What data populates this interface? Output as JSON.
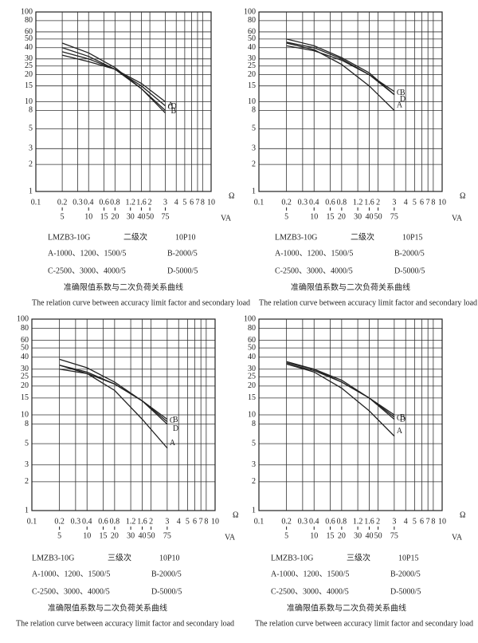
{
  "chart_data": [
    {
      "type": "line",
      "xscale": "log",
      "yscale": "log",
      "grid": true,
      "xlim": [
        0.1,
        10
      ],
      "ylim": [
        1,
        100
      ],
      "xticks": [
        0.1,
        0.2,
        0.3,
        0.4,
        0.6,
        0.8,
        1.2,
        1.6,
        2,
        3,
        4,
        5,
        6,
        7,
        8,
        10
      ],
      "yticks": [
        1,
        2,
        3,
        5,
        8,
        10,
        15,
        20,
        25,
        30,
        40,
        50,
        60,
        80,
        100
      ],
      "x2lim": [
        2.5,
        250
      ],
      "x2ticks": [
        5,
        10,
        15,
        20,
        30,
        40,
        50,
        75
      ],
      "x_unit": "Ω",
      "x2_unit": "VA",
      "x": [
        0.2,
        0.4,
        0.8,
        1.6,
        3
      ],
      "series": [
        {
          "name": "A",
          "color": "#222",
          "values": [
            45,
            35,
            24,
            14,
            8
          ]
        },
        {
          "name": "B",
          "color": "#222",
          "values": [
            40,
            32,
            23,
            14,
            7.5
          ]
        },
        {
          "name": "C",
          "color": "#222",
          "values": [
            33,
            28,
            23,
            15,
            9
          ]
        },
        {
          "name": "D",
          "color": "#222",
          "values": [
            36,
            30,
            23,
            16,
            10
          ]
        }
      ],
      "model": "LMZB3-10G",
      "grade": "二级次",
      "accuracy": "10P10",
      "ratings": [
        "A-1000、1200、1500/5",
        "B-2000/5",
        "C-2500、3000、4000/5",
        "D-5000/5"
      ],
      "caption": "准确限值系数与二次负荷关系曲线",
      "caption_en": "The relation curve between accuracy limit factor and secondary load"
    },
    {
      "type": "line",
      "xscale": "log",
      "yscale": "log",
      "grid": true,
      "xlim": [
        0.1,
        10
      ],
      "ylim": [
        1,
        100
      ],
      "xticks": [
        0.1,
        0.2,
        0.3,
        0.4,
        0.6,
        0.8,
        1.2,
        1.6,
        2,
        3,
        4,
        5,
        6,
        7,
        8,
        10
      ],
      "yticks": [
        1,
        2,
        3,
        5,
        8,
        10,
        15,
        20,
        25,
        30,
        40,
        50,
        60,
        80,
        100
      ],
      "x2lim": [
        2.5,
        250
      ],
      "x2ticks": [
        5,
        10,
        15,
        20,
        30,
        40,
        50,
        75
      ],
      "x_unit": "Ω",
      "x2_unit": "VA",
      "x": [
        0.2,
        0.4,
        0.8,
        1.6,
        3
      ],
      "series": [
        {
          "name": "A",
          "color": "#222",
          "values": [
            45,
            38,
            26,
            15,
            8
          ]
        },
        {
          "name": "B",
          "color": "#222",
          "values": [
            50,
            42,
            31,
            21,
            12
          ]
        },
        {
          "name": "C",
          "color": "#222",
          "values": [
            42,
            37,
            29,
            20,
            13
          ]
        },
        {
          "name": "D",
          "color": "#222",
          "values": [
            46,
            40,
            30,
            20,
            12
          ]
        }
      ],
      "model": "LMZB3-10G",
      "grade": "二级次",
      "accuracy": "10P15",
      "ratings": [
        "A-1000、1200、1500/5",
        "B-2000/5",
        "C-2500、3000、4000/5",
        "D-5000/5"
      ],
      "caption": "准确限值系数与二次负荷关系曲线",
      "caption_en": "The relation curve between accuracy limit factor and secondary load"
    },
    {
      "type": "line",
      "xscale": "log",
      "yscale": "log",
      "grid": true,
      "xlim": [
        0.1,
        10
      ],
      "ylim": [
        1,
        100
      ],
      "xticks": [
        0.1,
        0.2,
        0.3,
        0.4,
        0.6,
        0.8,
        1.2,
        1.6,
        2,
        3,
        4,
        5,
        6,
        7,
        8,
        10
      ],
      "yticks": [
        1,
        2,
        3,
        5,
        8,
        10,
        15,
        20,
        25,
        30,
        40,
        50,
        60,
        80,
        100
      ],
      "x2lim": [
        2.5,
        250
      ],
      "x2ticks": [
        5,
        10,
        15,
        20,
        30,
        40,
        50,
        75
      ],
      "x_unit": "Ω",
      "x2_unit": "VA",
      "x": [
        0.2,
        0.4,
        0.8,
        1.6,
        3
      ],
      "series": [
        {
          "name": "A",
          "color": "#222",
          "values": [
            33,
            27,
            18,
            9,
            4.5
          ]
        },
        {
          "name": "B",
          "color": "#222",
          "values": [
            38,
            31,
            22,
            14,
            8.5
          ]
        },
        {
          "name": "C",
          "color": "#222",
          "values": [
            30,
            27,
            21,
            14,
            9
          ]
        },
        {
          "name": "D",
          "color": "#222",
          "values": [
            33,
            28,
            21,
            14,
            8
          ]
        }
      ],
      "model": "LMZB3-10G",
      "grade": "三级次",
      "accuracy": "10P10",
      "ratings": [
        "A-1000、1200、1500/5",
        "B-2000/5",
        "C-2500、3000、4000/5",
        "D-5000/5"
      ],
      "caption": "准确限值系数与二次负荷关系曲线",
      "caption_en": "The relation curve between accuracy limit factor and secondary load"
    },
    {
      "type": "line",
      "xscale": "log",
      "yscale": "log",
      "grid": true,
      "xlim": [
        0.1,
        10
      ],
      "ylim": [
        1,
        100
      ],
      "xticks": [
        0.1,
        0.2,
        0.3,
        0.4,
        0.6,
        0.8,
        1.2,
        1.6,
        2,
        3,
        4,
        5,
        6,
        7,
        8,
        10
      ],
      "yticks": [
        1,
        2,
        3,
        5,
        8,
        10,
        15,
        20,
        25,
        30,
        40,
        50,
        60,
        80,
        100
      ],
      "x2lim": [
        2.5,
        250
      ],
      "x2ticks": [
        5,
        10,
        15,
        20,
        30,
        40,
        50,
        75
      ],
      "x_unit": "Ω",
      "x2_unit": "VA",
      "x": [
        0.2,
        0.4,
        0.8,
        1.6,
        3
      ],
      "series": [
        {
          "name": "A",
          "color": "#222",
          "values": [
            34,
            28,
            19,
            11,
            6
          ]
        },
        {
          "name": "B",
          "color": "#222",
          "values": [
            36,
            30,
            22,
            15,
            9
          ]
        },
        {
          "name": "C",
          "color": "#222",
          "values": [
            34,
            29,
            22,
            15,
            9.5
          ]
        },
        {
          "name": "D",
          "color": "#222",
          "values": [
            35,
            30,
            23,
            15,
            10
          ]
        }
      ],
      "model": "LMZB3-10G",
      "grade": "三级次",
      "accuracy": "10P15",
      "ratings": [
        "A-1000、1200、1500/5",
        "B-2000/5",
        "C-2500、3000、4000/5",
        "D-5000/5"
      ],
      "caption": "准确限值系数与二次负荷关系曲线",
      "caption_en": "The relation curve between accuracy limit factor and secondary load"
    }
  ]
}
